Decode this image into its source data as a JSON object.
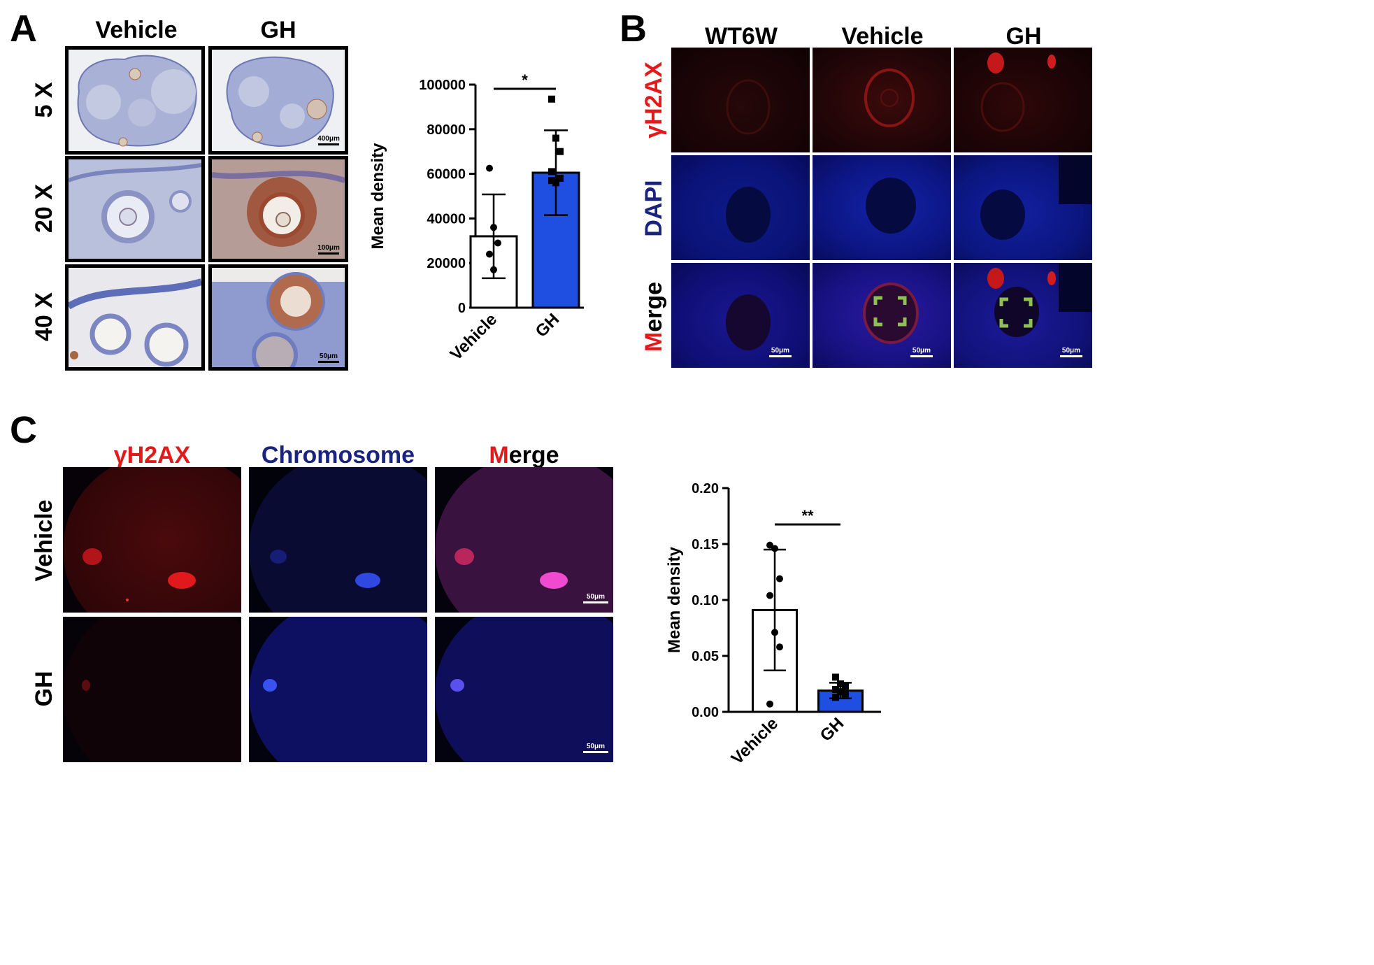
{
  "panel_a": {
    "letter": "A",
    "columns": [
      "Vehicle",
      "GH"
    ],
    "rows": [
      "5 X",
      "20 X",
      "40 X"
    ],
    "scale_bars": [
      "400μm",
      "100μm",
      "50μm"
    ]
  },
  "panel_b": {
    "letter": "B",
    "columns": [
      "WT6W",
      "Vehicle",
      "GH"
    ],
    "rows": {
      "gh2ax": "γH2AX",
      "dapi": "DAPI",
      "merge_first": "M",
      "merge_rest": "erge"
    },
    "scale_bar": "50μm"
  },
  "panel_c": {
    "letter": "C",
    "columns": {
      "gh2ax": "γH2AX",
      "chromosome": "Chromosome",
      "merge_first": "M",
      "merge_rest": "erge"
    },
    "rows": [
      "Vehicle",
      "GH"
    ],
    "scale_bar": "50μm"
  },
  "colors": {
    "vehicle_bar": "#ffffff",
    "gh_bar": "#1f4fe0",
    "red_label": "#e31a1c",
    "blue_label": "#1a237e"
  },
  "chart_data": [
    {
      "type": "bar",
      "panel": "A",
      "categories": [
        "Vehicle",
        "GH"
      ],
      "values": [
        32000,
        60500
      ],
      "error_sd": [
        18800,
        19000
      ],
      "points": [
        [
          62500,
          36000,
          29000,
          24000,
          17000
        ],
        [
          93500,
          76000,
          70000,
          61000,
          56000,
          58000,
          57000
        ]
      ],
      "xlabel": "",
      "ylabel": "Mean density",
      "ylim": [
        0,
        100000
      ],
      "yticks": [
        0,
        20000,
        40000,
        60000,
        80000,
        100000
      ],
      "significance": "*"
    },
    {
      "type": "bar",
      "panel": "C",
      "categories": [
        "Vehicle",
        "GH"
      ],
      "values": [
        0.091,
        0.019
      ],
      "error_sd": [
        0.054,
        0.007
      ],
      "points": [
        [
          0.149,
          0.146,
          0.119,
          0.104,
          0.071,
          0.058,
          0.007
        ],
        [
          0.031,
          0.025,
          0.023,
          0.02,
          0.018,
          0.016,
          0.013
        ]
      ],
      "xlabel": "",
      "ylabel": "Mean density",
      "ylim": [
        0,
        0.2
      ],
      "yticks": [
        "0.00",
        "0.05",
        "0.10",
        "0.15",
        "0.20"
      ],
      "significance": "**"
    }
  ]
}
